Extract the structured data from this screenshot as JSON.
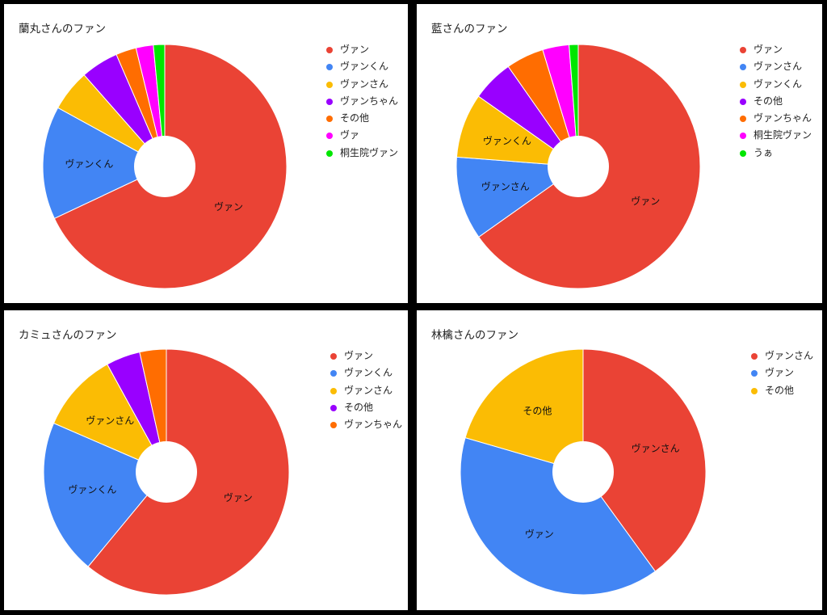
{
  "chart_data": [
    {
      "type": "pie",
      "title": "蘭丸さんのファン",
      "hole": true,
      "legend_position": "right",
      "series": [
        {
          "name": "ヴァン",
          "value": 68.0,
          "color": "#ea4335",
          "label": "ヴァン"
        },
        {
          "name": "ヴァンくん",
          "value": 15.0,
          "color": "#4285f4",
          "label": "ヴァンくん"
        },
        {
          "name": "ヴァンさん",
          "value": 5.5,
          "color": "#fbbc04",
          "label": ""
        },
        {
          "name": "ヴァンちゃん",
          "value": 5.0,
          "color": "#9900ff",
          "label": ""
        },
        {
          "name": "その他",
          "value": 2.7,
          "color": "#ff6d01",
          "label": ""
        },
        {
          "name": "ヴァ",
          "value": 2.3,
          "color": "#ff00ff",
          "label": ""
        },
        {
          "name": "桐生院ヴァン",
          "value": 1.5,
          "color": "#00e600",
          "label": ""
        }
      ]
    },
    {
      "type": "pie",
      "title": "藍さんのファン",
      "hole": true,
      "legend_position": "right",
      "series": [
        {
          "name": "ヴァン",
          "value": 65.0,
          "color": "#ea4335",
          "label": "ヴァン"
        },
        {
          "name": "ヴァンさん",
          "value": 11.0,
          "color": "#4285f4",
          "label": "ヴァンさん"
        },
        {
          "name": "ヴァンくん",
          "value": 8.5,
          "color": "#fbbc04",
          "label": "ヴァンくん"
        },
        {
          "name": "その他",
          "value": 5.5,
          "color": "#9900ff",
          "label": ""
        },
        {
          "name": "ヴァンちゃん",
          "value": 5.0,
          "color": "#ff6d01",
          "label": ""
        },
        {
          "name": "桐生院ヴァン",
          "value": 3.5,
          "color": "#ff00ff",
          "label": ""
        },
        {
          "name": "うぁ",
          "value": 1.2,
          "color": "#00e600",
          "label": ""
        }
      ]
    },
    {
      "type": "pie",
      "title": "カミュさんのファン",
      "hole": true,
      "legend_position": "right",
      "series": [
        {
          "name": "ヴァン",
          "value": 61.0,
          "color": "#ea4335",
          "label": "ヴァン"
        },
        {
          "name": "ヴァンくん",
          "value": 20.5,
          "color": "#4285f4",
          "label": "ヴァンくん"
        },
        {
          "name": "ヴァンさん",
          "value": 10.5,
          "color": "#fbbc04",
          "label": "ヴァンさん"
        },
        {
          "name": "その他",
          "value": 4.5,
          "color": "#9900ff",
          "label": ""
        },
        {
          "name": "ヴァンちゃん",
          "value": 3.5,
          "color": "#ff6d01",
          "label": ""
        }
      ]
    },
    {
      "type": "pie",
      "title": "林檎さんのファン",
      "hole": true,
      "legend_position": "right",
      "series": [
        {
          "name": "ヴァンさん",
          "value": 40.0,
          "color": "#ea4335",
          "label": "ヴァンさん"
        },
        {
          "name": "ヴァン",
          "value": 39.5,
          "color": "#4285f4",
          "label": "ヴァン"
        },
        {
          "name": "その他",
          "value": 20.5,
          "color": "#fbbc04",
          "label": "その他"
        }
      ]
    }
  ]
}
